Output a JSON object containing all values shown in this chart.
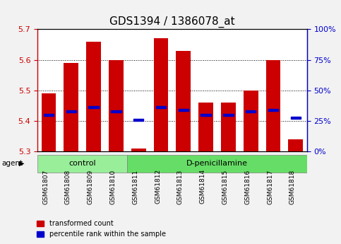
{
  "title": "GDS1394 / 1386078_at",
  "samples": [
    "GSM61807",
    "GSM61808",
    "GSM61809",
    "GSM61810",
    "GSM61811",
    "GSM61812",
    "GSM61813",
    "GSM61814",
    "GSM61815",
    "GSM61816",
    "GSM61817",
    "GSM61818"
  ],
  "bar_bottoms": [
    5.3,
    5.3,
    5.3,
    5.3,
    5.3,
    5.3,
    5.3,
    5.3,
    5.3,
    5.3,
    5.3,
    5.3
  ],
  "bar_tops": [
    5.49,
    5.59,
    5.66,
    5.6,
    5.31,
    5.67,
    5.63,
    5.46,
    5.46,
    5.5,
    5.6,
    5.34
  ],
  "blue_markers": [
    5.42,
    5.43,
    5.445,
    5.43,
    5.403,
    5.445,
    5.435,
    5.42,
    5.42,
    5.43,
    5.435,
    5.41
  ],
  "ylim": [
    5.3,
    5.7
  ],
  "yticks": [
    5.3,
    5.4,
    5.5,
    5.6,
    5.7
  ],
  "right_yticks": [
    0,
    25,
    50,
    75,
    100
  ],
  "right_yticklabels": [
    "0%",
    "25%",
    "50%",
    "75%",
    "100%"
  ],
  "bar_color": "#cc0000",
  "blue_color": "#0000cc",
  "bar_width": 0.65,
  "groups": [
    {
      "label": "control",
      "start": 0,
      "end": 4,
      "color": "#99ee99"
    },
    {
      "label": "D-penicillamine",
      "start": 4,
      "end": 12,
      "color": "#66dd66"
    }
  ],
  "group_row_label": "agent",
  "grid_color": "black",
  "bg_color": "#f2f2f2",
  "plot_bg": "white",
  "left_tick_color": "#cc0000",
  "right_tick_color": "#0000cc",
  "title_fontsize": 11,
  "tick_fontsize": 8,
  "sample_fontsize": 6.5
}
